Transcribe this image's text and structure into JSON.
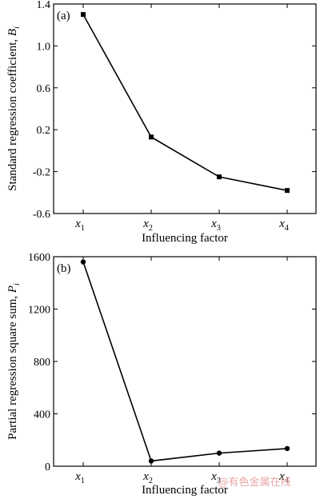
{
  "chart_data": [
    {
      "type": "line",
      "panel_label": "(a)",
      "categories": [
        "x1",
        "x2",
        "x3",
        "x4"
      ],
      "category_subscripts": [
        "1",
        "2",
        "3",
        "4"
      ],
      "values": [
        1.3,
        0.13,
        -0.25,
        -0.38
      ],
      "xlabel": "Influencing factor",
      "ylabel_main": "Standard regression coefficient, ",
      "ylabel_symbol": "B",
      "ylabel_sub": "i",
      "ylim": [
        -0.6,
        1.4
      ],
      "yticks": [
        1.4,
        1.0,
        0.6,
        0.2,
        -0.2,
        -0.6
      ],
      "ytick_labels": [
        "1.4",
        "1.0",
        "0.6",
        "0.2",
        "-0.2",
        "-0.6"
      ],
      "marker": "square",
      "grid": false
    },
    {
      "type": "line",
      "panel_label": "(b)",
      "categories": [
        "x1",
        "x2",
        "x3",
        "x4"
      ],
      "category_subscripts": [
        "1",
        "2",
        "3",
        "4"
      ],
      "values": [
        1560,
        40,
        100,
        135
      ],
      "xlabel": "Influencing factor",
      "ylabel_main": "Partial regression square sum, ",
      "ylabel_symbol": "P",
      "ylabel_sub": "i",
      "ylim": [
        0,
        1600
      ],
      "yticks": [
        1600,
        1200,
        800,
        400,
        0
      ],
      "ytick_labels": [
        "1600",
        "1200",
        "800",
        "400",
        "0"
      ],
      "marker": "circle",
      "grid": false
    }
  ],
  "watermark": "@有色金属在线"
}
